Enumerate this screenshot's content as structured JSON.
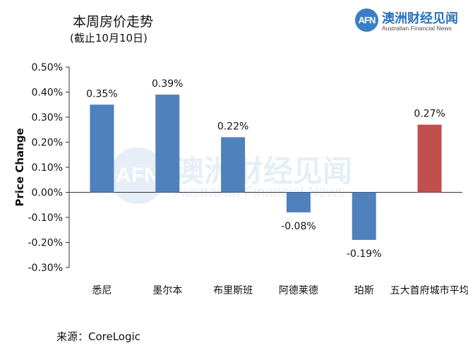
{
  "header": {
    "title": "本周房价走势",
    "subtitle": "(截止10月10日)"
  },
  "logo": {
    "mark": "AFN",
    "name_cn": "澳洲财经见闻",
    "name_en": "Australian Financial News"
  },
  "watermark": {
    "mark": "AFN",
    "name_cn": "澳洲财经见闻",
    "name_en": "Australian Financial News"
  },
  "footer": {
    "source": "来源：CoreLogic"
  },
  "colors": {
    "city_bar": "#4f81bd",
    "average_bar": "#c0504d"
  },
  "chart_data": {
    "type": "bar",
    "title": "本周房价走势",
    "subtitle": "(截止10月10日)",
    "xlabel": "",
    "ylabel": "Price Change",
    "categories": [
      "悉尼",
      "墨尔本",
      "布里斯班",
      "阿德莱德",
      "珀斯",
      "五大首府城市平均"
    ],
    "values": [
      0.35,
      0.39,
      0.22,
      -0.08,
      -0.19,
      0.27
    ],
    "data_labels": [
      "0.35%",
      "0.39%",
      "0.22%",
      "-0.08%",
      "-0.19%",
      "0.27%"
    ],
    "bar_colors": [
      "#4f81bd",
      "#4f81bd",
      "#4f81bd",
      "#4f81bd",
      "#4f81bd",
      "#c0504d"
    ],
    "ylim": [
      -0.3,
      0.5
    ],
    "yticks": [
      0.5,
      0.4,
      0.3,
      0.2,
      0.1,
      0.0,
      -0.1,
      -0.2,
      -0.3
    ],
    "ytick_labels": [
      "0.50%",
      "0.40%",
      "0.30%",
      "0.20%",
      "0.10%",
      "0.00%",
      "-0.10%",
      "-0.20%",
      "-0.30%"
    ],
    "grid": false,
    "legend": "none"
  }
}
